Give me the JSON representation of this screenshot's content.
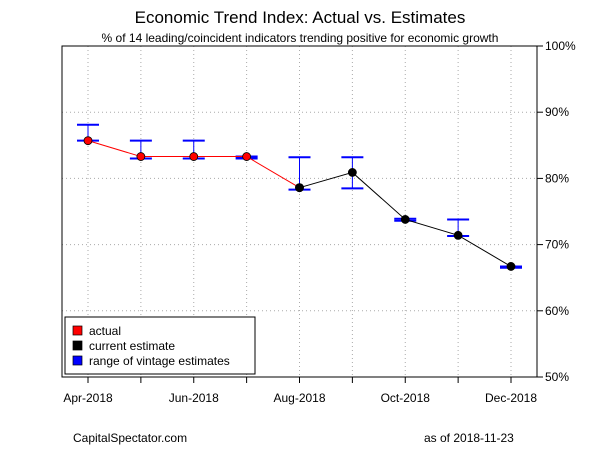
{
  "title": "Economic Trend Index: Actual vs. Estimates",
  "subtitle": "% of 14 leading/coincident indicators trending positive for economic growth",
  "footer": {
    "source": "CapitalSpectator.com",
    "as_of": "as of  2018-11-23"
  },
  "colors": {
    "actual": "#ff0000",
    "current": "#000000",
    "range": "#0000ff",
    "grid": "#aaaaaa"
  },
  "chart_data": {
    "type": "line",
    "title": "Economic Trend Index: Actual vs. Estimates",
    "subtitle": "% of 14 leading/coincident indicators trending positive for economic growth",
    "x": [
      "2018-04",
      "2018-05",
      "2018-06",
      "2018-07",
      "2018-08",
      "2018-09",
      "2018-10",
      "2018-11",
      "2018-12"
    ],
    "x_tick_labels": [
      "Apr-2018",
      "Jun-2018",
      "Aug-2018",
      "Oct-2018",
      "Dec-2018"
    ],
    "y_tick_labels": [
      "50%",
      "60%",
      "70%",
      "80%",
      "90%",
      "100%"
    ],
    "ylim": [
      50,
      100
    ],
    "y_axis_side": "right",
    "grid": true,
    "legend_position": "bottom-left",
    "series": [
      {
        "name": "actual",
        "values": [
          85.7,
          83.3,
          83.3,
          83.3,
          78.6,
          null,
          null,
          null,
          null
        ]
      },
      {
        "name": "current estimate",
        "values": [
          null,
          null,
          null,
          null,
          78.6,
          80.9,
          73.8,
          71.4,
          66.7
        ]
      }
    ],
    "range_of_vintage_estimates": {
      "name": "range of vintage estimates",
      "low": [
        85.7,
        83.0,
        83.0,
        83.0,
        78.3,
        78.5,
        73.6,
        71.3,
        66.5
      ],
      "high": [
        88.1,
        85.7,
        85.7,
        83.3,
        83.2,
        83.2,
        73.9,
        73.8,
        66.7
      ]
    }
  }
}
